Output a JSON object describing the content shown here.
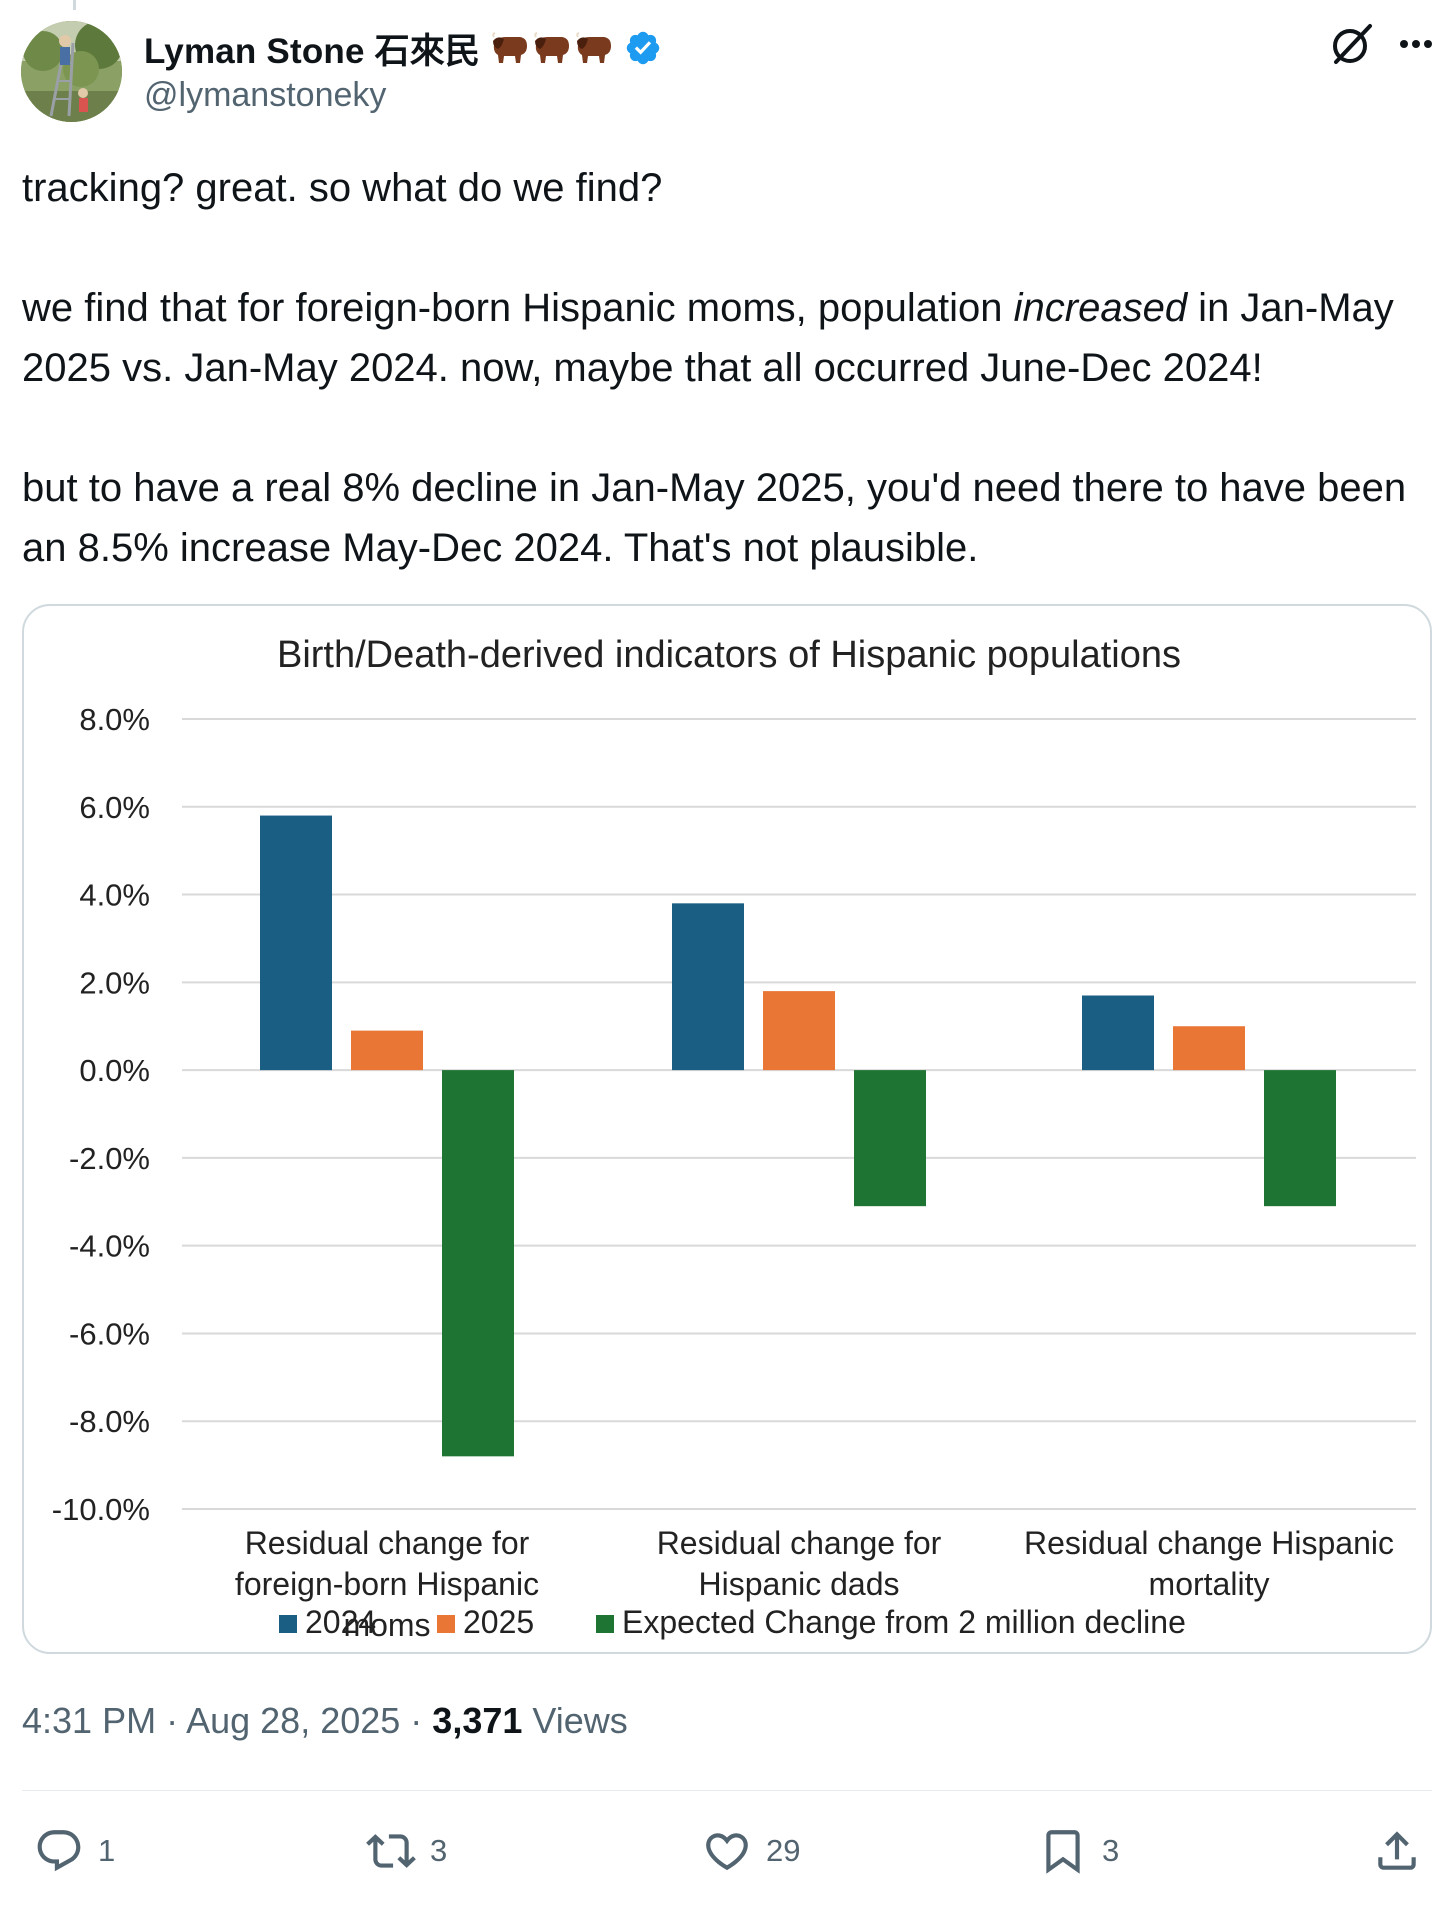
{
  "author": {
    "display_name": "Lyman Stone 石來民",
    "handle": "@lymanstoneky",
    "emoji_label": "bison emoji x3",
    "verified": true
  },
  "tweet": {
    "p1": "tracking? great. so what do we find?",
    "p2_a": "we find that for foreign-born Hispanic moms, population ",
    "p2_em": "increased",
    "p2_b": " in Jan-May 2025 vs. Jan-May 2024. now, maybe that all occurred June-Dec 2024!",
    "p3": "but to have a real 8% decline in Jan-May 2025, you'd need there to have been an 8.5% increase May-Dec 2024. That's not plausible."
  },
  "chart_data": {
    "type": "bar",
    "title": "Birth/Death-derived indicators of Hispanic populations",
    "categories": [
      [
        "Residual change for",
        "foreign-born Hispanic",
        "moms"
      ],
      [
        "Residual change for",
        "Hispanic dads"
      ],
      [
        "Residual change Hispanic",
        "mortality"
      ]
    ],
    "series": [
      {
        "name": "2024",
        "color": "#1b5e84",
        "values": [
          5.8,
          3.8,
          1.7
        ]
      },
      {
        "name": "2025",
        "color": "#e97635",
        "values": [
          0.9,
          1.8,
          1.0
        ]
      },
      {
        "name": "Expected Change from 2 million decline",
        "color": "#1e7432",
        "values": [
          -8.8,
          -3.1,
          -3.1
        ]
      }
    ],
    "ylim": [
      -10,
      8
    ],
    "ytick_step": 2,
    "ytick_labels": [
      "8.0%",
      "6.0%",
      "4.0%",
      "2.0%",
      "0.0%",
      "-2.0%",
      "-4.0%",
      "-6.0%",
      "-8.0%",
      "-10.0%"
    ],
    "grid": true,
    "legend_position": "bottom"
  },
  "meta": {
    "time": "4:31 PM",
    "sep": " · ",
    "date": "Aug 28, 2025",
    "views_count": "3,371",
    "views_label": " Views"
  },
  "actions": {
    "replies": "1",
    "reposts": "3",
    "likes": "29",
    "bookmarks": "3"
  },
  "colors": {
    "text": "#0f1419",
    "secondary": "#536471",
    "verified": "#1d9bf0"
  }
}
